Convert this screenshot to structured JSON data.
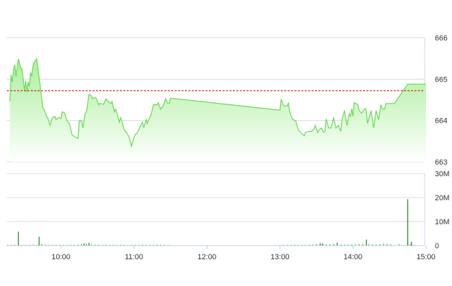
{
  "chart_data": [
    {
      "type": "area",
      "title": "",
      "xlabel": "",
      "ylabel": "",
      "xlim": [
        "09:15",
        "15:00"
      ],
      "ylim": [
        663,
        666
      ],
      "y_ticks": [
        "666",
        "665",
        "664",
        "663"
      ],
      "y_axis_side": "right",
      "grid": true,
      "reference_line": {
        "value": 664.72,
        "color": "#e02020",
        "style": "dashed"
      },
      "colors": {
        "line": "#6ddc5a",
        "fill_top": "#a8ee98",
        "fill_bottom": "#ffffff"
      },
      "points": [
        [
          "09:18",
          664.46
        ],
        [
          "09:19",
          665.1
        ],
        [
          "09:20",
          664.93
        ],
        [
          "09:21",
          665.21
        ],
        [
          "09:22",
          665.35
        ],
        [
          "09:23",
          665.07
        ],
        [
          "09:25",
          665.49
        ],
        [
          "09:27",
          665.27
        ],
        [
          "09:28",
          665.24
        ],
        [
          "09:29",
          664.99
        ],
        [
          "09:30",
          664.71
        ],
        [
          "09:31",
          664.96
        ],
        [
          "09:32",
          664.68
        ],
        [
          "09:33",
          664.93
        ],
        [
          "09:34",
          664.82
        ],
        [
          "09:35",
          665.16
        ],
        [
          "09:36",
          665.07
        ],
        [
          "09:37",
          665.32
        ],
        [
          "09:38",
          665.41
        ],
        [
          "09:40",
          665.49
        ],
        [
          "09:41",
          665.27
        ],
        [
          "09:43",
          664.82
        ],
        [
          "09:45",
          664.32
        ],
        [
          "09:47",
          664.21
        ],
        [
          "09:48",
          664.1
        ],
        [
          "09:49",
          664.07
        ],
        [
          "09:51",
          663.88
        ],
        [
          "09:53",
          664.07
        ],
        [
          "09:55",
          664.1
        ],
        [
          "09:56",
          664.02
        ],
        [
          "09:58",
          664.07
        ],
        [
          "10:00",
          664.05
        ],
        [
          "10:01",
          664.21
        ],
        [
          "10:03",
          664.18
        ],
        [
          "10:05",
          663.99
        ],
        [
          "10:07",
          663.93
        ],
        [
          "10:09",
          663.66
        ],
        [
          "10:11",
          663.61
        ],
        [
          "10:14",
          663.57
        ],
        [
          "10:15",
          663.99
        ],
        [
          "10:17",
          663.99
        ],
        [
          "10:18",
          663.82
        ],
        [
          "10:20",
          664.18
        ],
        [
          "10:21",
          664.21
        ],
        [
          "10:23",
          664.63
        ],
        [
          "10:25",
          664.6
        ],
        [
          "10:26",
          664.52
        ],
        [
          "10:28",
          664.56
        ],
        [
          "10:29",
          664.54
        ],
        [
          "10:31",
          664.38
        ],
        [
          "10:32",
          664.41
        ],
        [
          "10:35",
          664.39
        ],
        [
          "10:37",
          664.52
        ],
        [
          "10:39",
          664.46
        ],
        [
          "10:41",
          664.41
        ],
        [
          "10:42",
          664.46
        ],
        [
          "10:44",
          664.21
        ],
        [
          "10:45",
          664.27
        ],
        [
          "10:46",
          664.18
        ],
        [
          "10:48",
          663.96
        ],
        [
          "10:49",
          664.07
        ],
        [
          "10:50",
          663.99
        ],
        [
          "10:52",
          663.77
        ],
        [
          "10:54",
          663.71
        ],
        [
          "10:56",
          663.6
        ],
        [
          "10:58",
          663.38
        ],
        [
          "10:59",
          663.49
        ],
        [
          "11:01",
          663.66
        ],
        [
          "11:03",
          663.71
        ],
        [
          "11:05",
          663.85
        ],
        [
          "11:07",
          663.96
        ],
        [
          "11:08",
          663.82
        ],
        [
          "11:10",
          664.02
        ],
        [
          "11:11",
          663.93
        ],
        [
          "11:13",
          664.07
        ],
        [
          "11:14",
          664.13
        ],
        [
          "11:16",
          664.38
        ],
        [
          "11:19",
          664.38
        ],
        [
          "11:20",
          664.43
        ],
        [
          "11:22",
          664.27
        ],
        [
          "11:24",
          664.35
        ],
        [
          "11:26",
          664.52
        ],
        [
          "11:28",
          664.41
        ],
        [
          "11:29",
          664.41
        ],
        [
          "11:30",
          664.54
        ],
        [
          "13:00",
          664.25
        ],
        [
          "13:01",
          664.52
        ],
        [
          "13:03",
          664.35
        ],
        [
          "13:06",
          664.35
        ],
        [
          "13:07",
          664.43
        ],
        [
          "13:08",
          664.21
        ],
        [
          "13:10",
          664.04
        ],
        [
          "13:11",
          664.02
        ],
        [
          "13:13",
          663.99
        ],
        [
          "13:15",
          663.77
        ],
        [
          "13:17",
          663.71
        ],
        [
          "13:20",
          663.63
        ],
        [
          "13:21",
          663.71
        ],
        [
          "13:24",
          663.74
        ],
        [
          "13:26",
          663.74
        ],
        [
          "13:28",
          663.79
        ],
        [
          "13:29",
          663.88
        ],
        [
          "13:31",
          663.71
        ],
        [
          "13:32",
          663.77
        ],
        [
          "13:34",
          663.82
        ],
        [
          "13:36",
          663.71
        ],
        [
          "13:37",
          663.74
        ],
        [
          "13:38",
          664.04
        ],
        [
          "13:40",
          663.82
        ],
        [
          "13:42",
          663.82
        ],
        [
          "13:44",
          664.07
        ],
        [
          "13:46",
          663.82
        ],
        [
          "13:48",
          663.88
        ],
        [
          "13:50",
          663.74
        ],
        [
          "13:51",
          664.02
        ],
        [
          "13:53",
          664.24
        ],
        [
          "13:55",
          663.88
        ],
        [
          "13:57",
          664.16
        ],
        [
          "13:58",
          664.1
        ],
        [
          "13:59",
          664.29
        ],
        [
          "14:00",
          664.1
        ],
        [
          "14:01",
          664.43
        ],
        [
          "14:04",
          664.38
        ],
        [
          "14:05",
          664.24
        ],
        [
          "14:07",
          664.18
        ],
        [
          "14:10",
          664.29
        ],
        [
          "14:11",
          664.24
        ],
        [
          "14:12",
          663.93
        ],
        [
          "14:15",
          664.24
        ],
        [
          "14:17",
          663.82
        ],
        [
          "14:19",
          664.24
        ],
        [
          "14:21",
          664.02
        ],
        [
          "14:23",
          664.38
        ],
        [
          "14:24",
          664.29
        ],
        [
          "14:26",
          664.27
        ],
        [
          "14:27",
          664.41
        ],
        [
          "14:34",
          664.41
        ],
        [
          "14:45",
          664.88
        ],
        [
          "15:00",
          664.88
        ]
      ]
    },
    {
      "type": "bar",
      "title": "",
      "xlabel": "",
      "ylabel": "",
      "ylim": [
        0,
        30000000
      ],
      "y_ticks": [
        "30M",
        "20M",
        "10M",
        "0"
      ],
      "y_axis_side": "right",
      "x_ticks": [
        "10:00",
        "11:00",
        "12:00",
        "13:00",
        "14:00",
        "15:00"
      ],
      "grid": true,
      "colors": {
        "bar": "#1f8a1f",
        "bar_light": "#5cc45c"
      },
      "volumes": [
        [
          "09:16",
          300000
        ],
        [
          "09:19",
          250000
        ],
        [
          "09:22",
          350000
        ],
        [
          "09:25",
          5800000
        ],
        [
          "09:28",
          300000
        ],
        [
          "09:31",
          250000
        ],
        [
          "09:34",
          300000
        ],
        [
          "09:37",
          350000
        ],
        [
          "09:40",
          250000
        ],
        [
          "09:42",
          3700000
        ],
        [
          "09:44",
          700000
        ],
        [
          "09:47",
          350000
        ],
        [
          "09:50",
          300000
        ],
        [
          "09:53",
          250000
        ],
        [
          "09:56",
          300000
        ],
        [
          "09:59",
          250000
        ],
        [
          "10:02",
          300000
        ],
        [
          "10:05",
          250000
        ],
        [
          "10:08",
          300000
        ],
        [
          "10:11",
          350000
        ],
        [
          "10:14",
          450000
        ],
        [
          "10:17",
          700000
        ],
        [
          "10:19",
          900000
        ],
        [
          "10:21",
          800000
        ],
        [
          "10:23",
          1100000
        ],
        [
          "10:25",
          500000
        ],
        [
          "10:28",
          400000
        ],
        [
          "10:31",
          350000
        ],
        [
          "10:34",
          300000
        ],
        [
          "10:37",
          350000
        ],
        [
          "10:40",
          250000
        ],
        [
          "10:43",
          300000
        ],
        [
          "10:46",
          250000
        ],
        [
          "10:49",
          300000
        ],
        [
          "10:52",
          250000
        ],
        [
          "10:55",
          200000
        ],
        [
          "10:58",
          250000
        ],
        [
          "11:01",
          300000
        ],
        [
          "11:04",
          250000
        ],
        [
          "11:07",
          350000
        ],
        [
          "11:10",
          300000
        ],
        [
          "11:13",
          250000
        ],
        [
          "11:16",
          300000
        ],
        [
          "11:19",
          400000
        ],
        [
          "11:22",
          350000
        ],
        [
          "11:25",
          300000
        ],
        [
          "11:28",
          250000
        ],
        [
          "13:03",
          200000
        ],
        [
          "13:06",
          250000
        ],
        [
          "13:09",
          300000
        ],
        [
          "13:12",
          350000
        ],
        [
          "13:15",
          300000
        ],
        [
          "13:18",
          250000
        ],
        [
          "13:21",
          300000
        ],
        [
          "13:24",
          350000
        ],
        [
          "13:27",
          400000
        ],
        [
          "13:30",
          600000
        ],
        [
          "13:33",
          1000000
        ],
        [
          "13:35",
          900000
        ],
        [
          "13:38",
          500000
        ],
        [
          "13:41",
          600000
        ],
        [
          "13:44",
          700000
        ],
        [
          "13:47",
          1200000
        ],
        [
          "13:50",
          500000
        ],
        [
          "13:53",
          400000
        ],
        [
          "13:56",
          350000
        ],
        [
          "13:59",
          400000
        ],
        [
          "14:02",
          500000
        ],
        [
          "14:05",
          600000
        ],
        [
          "14:08",
          700000
        ],
        [
          "14:11",
          2500000
        ],
        [
          "14:13",
          700000
        ],
        [
          "14:16",
          500000
        ],
        [
          "14:19",
          450000
        ],
        [
          "14:22",
          600000
        ],
        [
          "14:25",
          800000
        ],
        [
          "14:28",
          700000
        ],
        [
          "14:31",
          500000
        ],
        [
          "14:38",
          600000
        ],
        [
          "14:45",
          19300000
        ],
        [
          "14:47",
          500000
        ],
        [
          "14:48",
          1600000
        ],
        [
          "14:50",
          300000
        ]
      ]
    }
  ]
}
